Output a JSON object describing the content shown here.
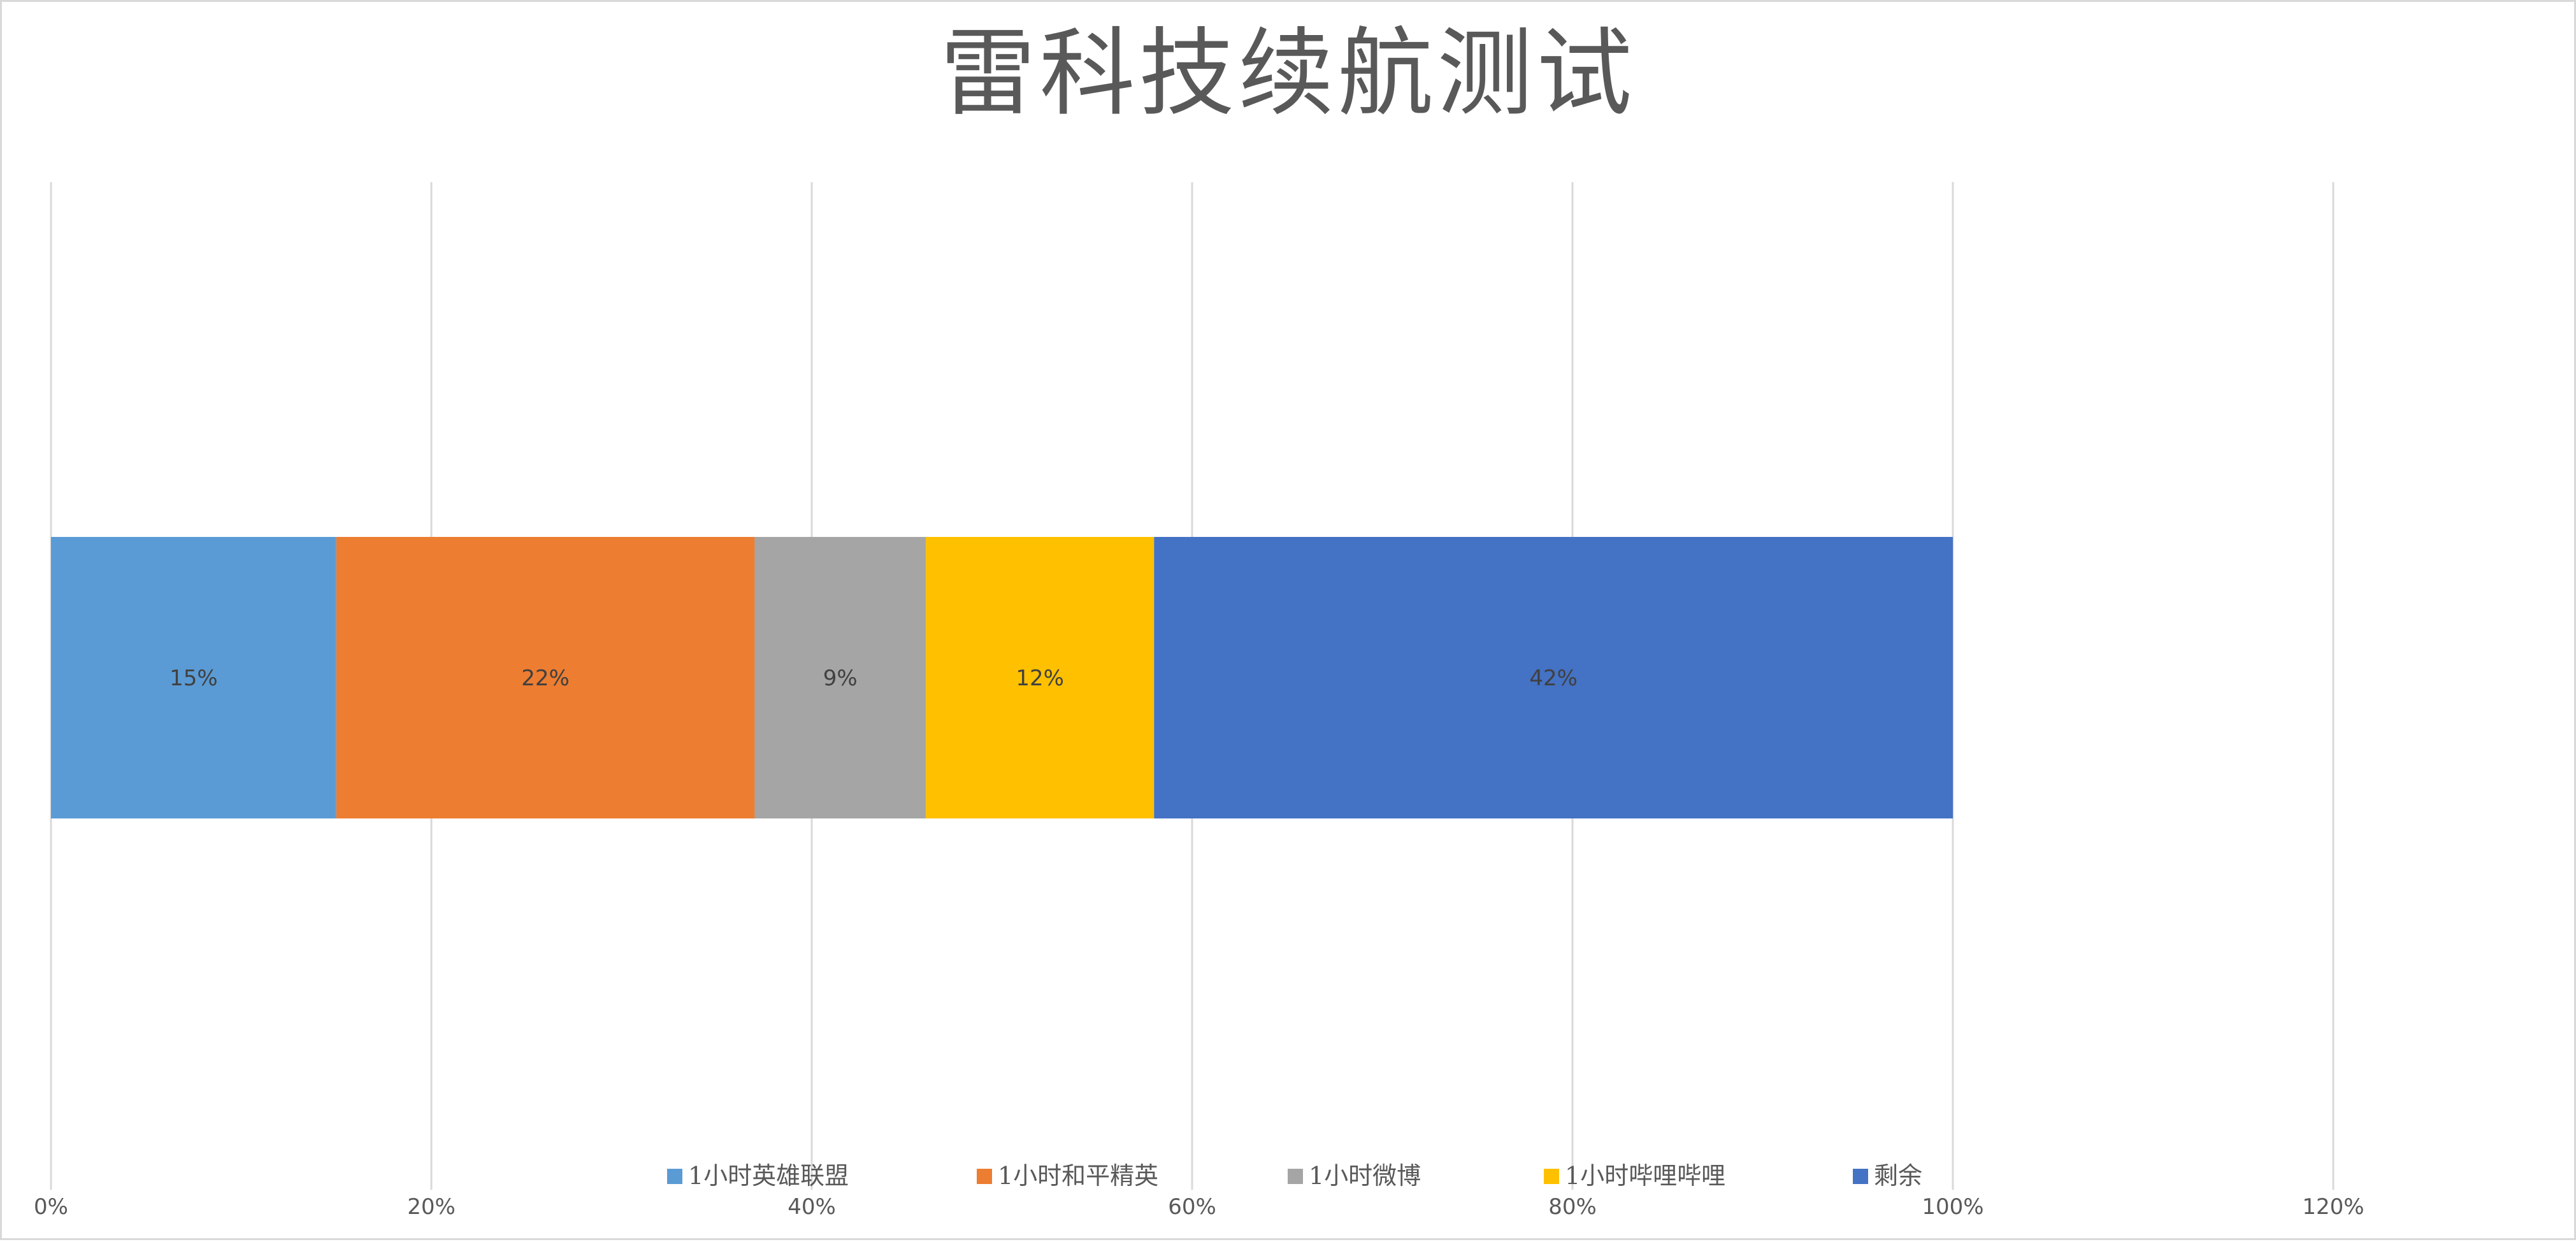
{
  "chart_data": {
    "type": "bar",
    "orientation": "horizontal",
    "stacked": true,
    "title": "雷科技续航测试",
    "xlim": [
      0,
      1.2
    ],
    "x_ticks": [
      0,
      0.2,
      0.4,
      0.6,
      0.8,
      1.0,
      1.2
    ],
    "x_tick_labels": [
      "0%",
      "20%",
      "40%",
      "60%",
      "80%",
      "100%",
      "120%"
    ],
    "grid": true,
    "legend_position": "bottom",
    "series": [
      {
        "name": "1小时英雄联盟",
        "value": 0.15,
        "label": "15%",
        "color": "#5b9bd5"
      },
      {
        "name": "1小时和平精英",
        "value": 0.22,
        "label": "22%",
        "color": "#ed7d31"
      },
      {
        "name": "1小时微博",
        "value": 0.09,
        "label": "9%",
        "color": "#a5a5a5"
      },
      {
        "name": "1小时哔哩哔哩",
        "value": 0.12,
        "label": "12%",
        "color": "#ffc000"
      },
      {
        "name": "剩余",
        "value": 0.42,
        "label": "42%",
        "color": "#4472c4"
      }
    ]
  }
}
